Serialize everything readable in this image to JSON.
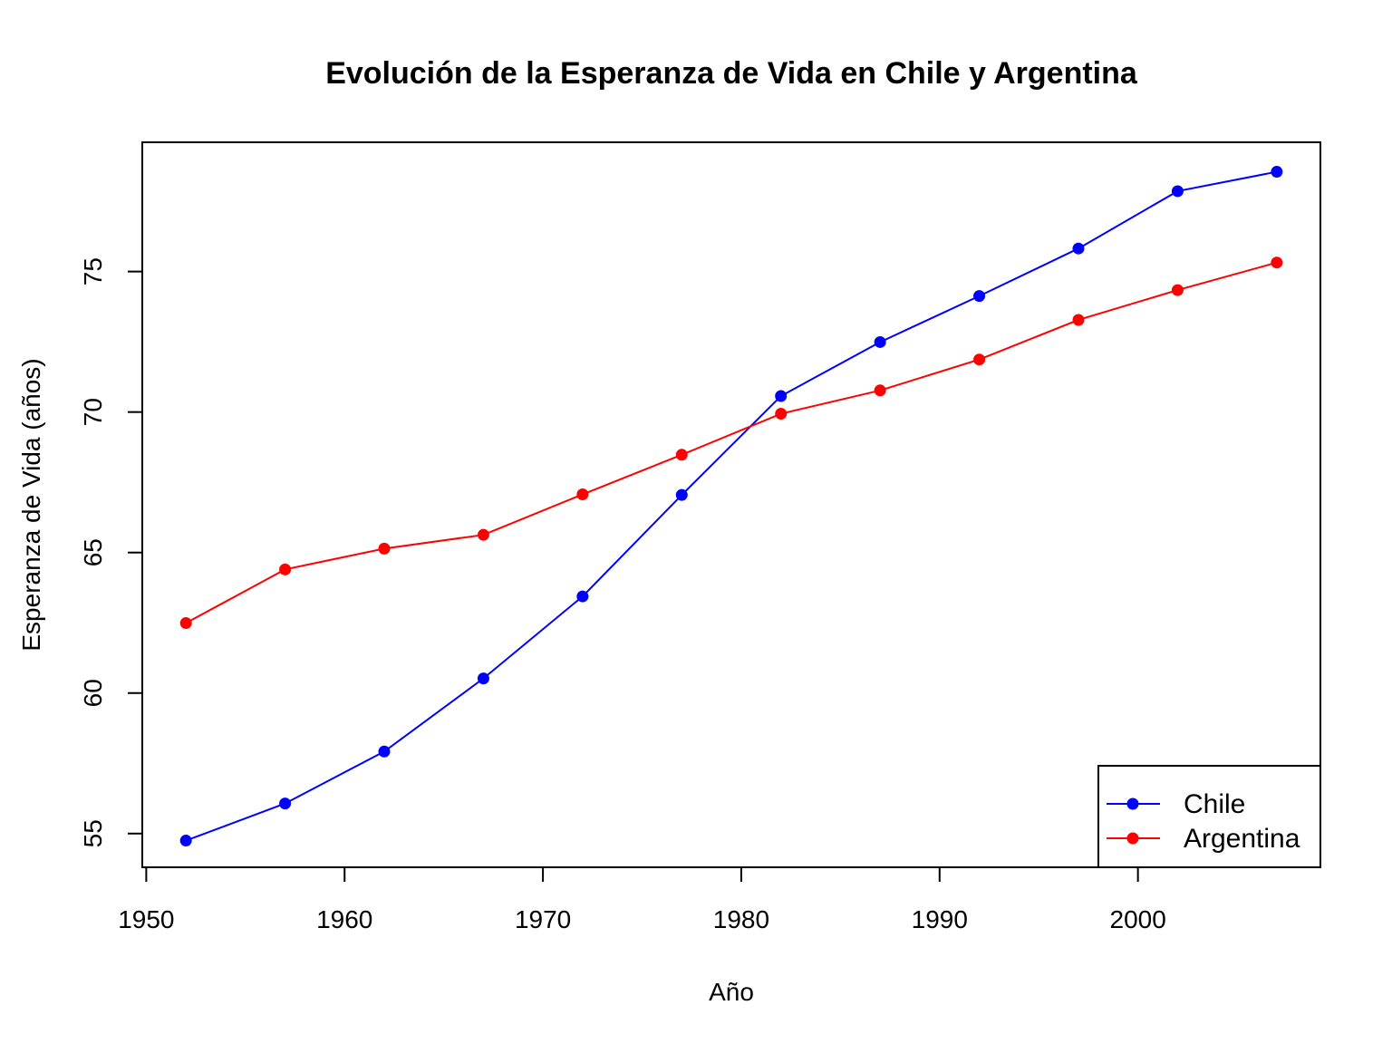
{
  "chart_data": {
    "type": "line",
    "title": "Evolución de la Esperanza de Vida en Chile y Argentina",
    "xlabel": "Año",
    "ylabel": "Esperanza de Vida (años)",
    "x": [
      1952,
      1957,
      1962,
      1967,
      1972,
      1977,
      1982,
      1987,
      1992,
      1997,
      2002,
      2007
    ],
    "xlim": [
      1949.8,
      2009.2
    ],
    "ylim": [
      53.8,
      79.6
    ],
    "xticks": [
      1950,
      1960,
      1970,
      1980,
      1990,
      2000
    ],
    "yticks": [
      55,
      60,
      65,
      70,
      75
    ],
    "grid": false,
    "legend_position": "bottom-right",
    "series": [
      {
        "name": "Chile",
        "color": "#0000ff",
        "values": [
          54.75,
          56.07,
          57.92,
          60.52,
          63.44,
          67.05,
          70.57,
          72.49,
          74.13,
          75.82,
          77.86,
          78.55
        ]
      },
      {
        "name": "Argentina",
        "color": "#ff0000",
        "values": [
          62.49,
          64.4,
          65.14,
          65.63,
          67.07,
          68.48,
          69.94,
          70.77,
          71.87,
          73.28,
          74.34,
          75.32
        ]
      }
    ]
  }
}
